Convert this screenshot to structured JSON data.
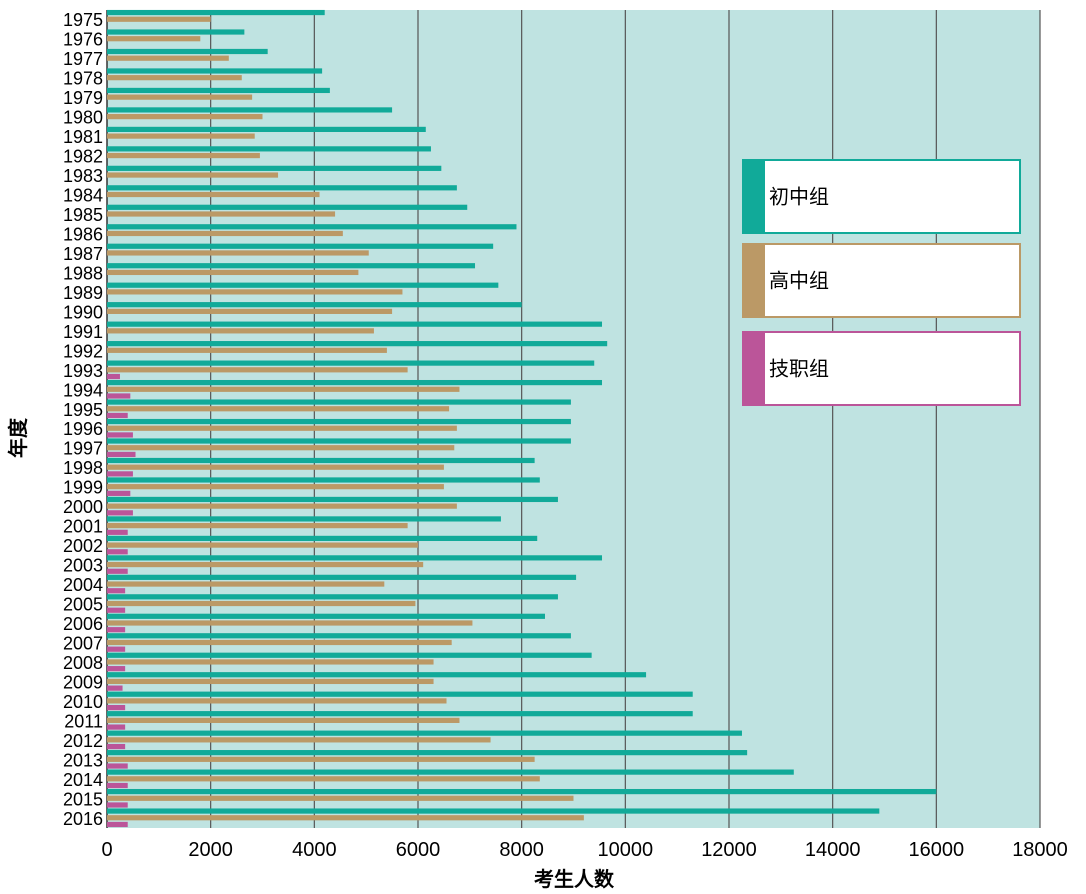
{
  "chart_data": {
    "type": "bar",
    "orientation": "horizontal",
    "xlabel": "考生人数",
    "ylabel": "年度",
    "xlim": [
      0,
      18000
    ],
    "x_ticks": [
      0,
      2000,
      4000,
      6000,
      8000,
      10000,
      12000,
      14000,
      16000,
      18000
    ],
    "grid": "vertical",
    "legend_position": "right",
    "colors": {
      "plot_background": "#bfe3e1",
      "grid": "#555555",
      "初中组": "#11aa99",
      "高中组": "#bb9966",
      "技职组": "#bb5599"
    },
    "categories": [
      "1975",
      "1976",
      "1977",
      "1978",
      "1979",
      "1980",
      "1981",
      "1982",
      "1983",
      "1984",
      "1985",
      "1986",
      "1987",
      "1988",
      "1989",
      "1990",
      "1991",
      "1992",
      "1993",
      "1994",
      "1995",
      "1996",
      "1997",
      "1998",
      "1999",
      "2000",
      "2001",
      "2002",
      "2003",
      "2004",
      "2005",
      "2006",
      "2007",
      "2008",
      "2009",
      "2010",
      "2011",
      "2012",
      "2013",
      "2014",
      "2015",
      "2016"
    ],
    "series": [
      {
        "name": "初中组",
        "values": [
          4200,
          2650,
          3100,
          4150,
          4300,
          5500,
          6150,
          6250,
          6450,
          6750,
          6950,
          7900,
          7450,
          7100,
          7550,
          8000,
          9550,
          9650,
          9400,
          9550,
          8950,
          8950,
          8950,
          8250,
          8350,
          8700,
          7600,
          8300,
          9550,
          9050,
          8700,
          8450,
          8950,
          9350,
          10400,
          11300,
          11300,
          12250,
          12350,
          13250,
          16000,
          14900
        ]
      },
      {
        "name": "高中组",
        "values": [
          2000,
          1800,
          2350,
          2600,
          2800,
          3000,
          2850,
          2950,
          3300,
          4100,
          4400,
          4550,
          5050,
          4850,
          5700,
          5500,
          5150,
          5400,
          5800,
          6800,
          6600,
          6750,
          6700,
          6500,
          6500,
          6750,
          5800,
          6000,
          6100,
          5350,
          5950,
          7050,
          6650,
          6300,
          6300,
          6550,
          6800,
          7400,
          8250,
          8350,
          9000,
          9200
        ]
      },
      {
        "name": "技职组",
        "values": [
          null,
          null,
          null,
          null,
          null,
          null,
          null,
          null,
          null,
          null,
          null,
          null,
          null,
          null,
          null,
          null,
          null,
          null,
          250,
          450,
          400,
          500,
          550,
          500,
          450,
          500,
          400,
          400,
          400,
          350,
          350,
          350,
          350,
          350,
          300,
          350,
          350,
          350,
          400,
          400,
          400,
          400
        ]
      }
    ]
  }
}
